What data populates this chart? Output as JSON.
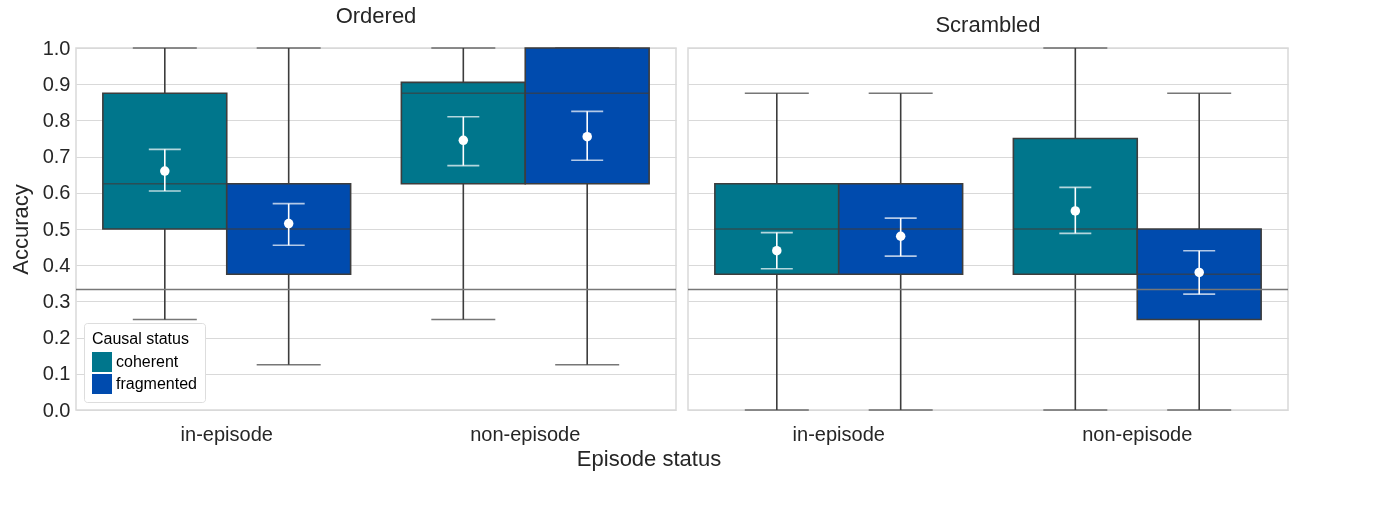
{
  "chart_data": [
    {
      "type": "box",
      "title": "Ordered",
      "xlabel": "Episode status",
      "ylabel": "Accuracy",
      "legend_title": "Causal status",
      "legend": "bottom left",
      "grid": "y",
      "categories": [
        "in-episode",
        "non-episode"
      ],
      "ylim": [
        0,
        1
      ],
      "yticks": [
        {
          "value": 0,
          "label": "0.0"
        },
        0.1,
        0.2,
        0.3,
        0.4,
        0.5,
        0.6,
        0.7,
        0.8,
        0.9,
        {
          "value": 1,
          "label": "1.0"
        }
      ],
      "ref_lines": [
        {
          "axis": "y",
          "value": 0.333,
          "color": "#777777"
        }
      ],
      "series": [
        {
          "name": "coherent",
          "color": "#00768c",
          "boxes": [
            {
              "low": 0.25,
              "q1": 0.5,
              "median": 0.625,
              "q3": 0.875,
              "high": 1
            },
            {
              "low": 0.25,
              "q1": 0.625,
              "median": 0.875,
              "q3": 0.905,
              "high": 1
            }
          ]
        },
        {
          "name": "fragmented",
          "color": "#004bae",
          "boxes": [
            {
              "low": 0.125,
              "q1": 0.375,
              "median": 0.5,
              "q3": 0.625,
              "high": 1
            },
            {
              "low": 0.125,
              "q1": 0.625,
              "median": 0.875,
              "q3": 1,
              "high": 1
            }
          ]
        },
        {
          "type": "scatter",
          "color": "#ffffff",
          "x": [
            "in-episode",
            "non-episode"
          ],
          "values": [
            0.66,
            0.745
          ],
          "errors": [
            [
              0.605,
              0.72
            ],
            [
              0.675,
              0.81
            ]
          ]
        },
        {
          "type": "scatter",
          "color": "#ffffff",
          "x": [
            "in-episode",
            "non-episode"
          ],
          "values": [
            0.515,
            0.755
          ],
          "errors": [
            [
              0.455,
              0.57
            ],
            [
              0.69,
              0.825
            ]
          ]
        }
      ]
    },
    {
      "type": "box",
      "title": "Scrambled",
      "grid": "y",
      "tick_labels": "x",
      "categories": [
        "in-episode",
        "non-episode"
      ],
      "ylim": [
        0,
        1
      ],
      "yticks": [
        0,
        0.1,
        0.2,
        0.3,
        0.4,
        0.5,
        0.6,
        0.7,
        0.8,
        0.9,
        1
      ],
      "ref_lines": [
        {
          "axis": "y",
          "value": 0.333,
          "color": "#777777"
        }
      ],
      "series": [
        {
          "color": "#00768c",
          "boxes": [
            {
              "low": 0,
              "q1": 0.375,
              "median": 0.5,
              "q3": 0.625,
              "high": 0.875
            },
            {
              "low": 0,
              "q1": 0.375,
              "median": 0.5,
              "q3": 0.75,
              "high": 1
            }
          ]
        },
        {
          "color": "#004bae",
          "boxes": [
            {
              "low": 0,
              "q1": 0.375,
              "median": 0.5,
              "q3": 0.625,
              "high": 0.875
            },
            {
              "low": 0,
              "q1": 0.25,
              "median": 0.375,
              "q3": 0.5,
              "high": 0.875
            }
          ]
        },
        {
          "type": "scatter",
          "color": "#ffffff",
          "x": [
            "in-episode",
            "non-episode"
          ],
          "values": [
            0.44,
            0.55
          ],
          "errors": [
            [
              0.39,
              0.49
            ],
            [
              0.488,
              0.615
            ]
          ]
        },
        {
          "type": "scatter",
          "color": "#ffffff",
          "x": [
            "in-episode",
            "non-episode"
          ],
          "values": [
            0.48,
            0.38
          ],
          "errors": [
            [
              0.425,
              0.53
            ],
            [
              0.32,
              0.44
            ]
          ]
        }
      ]
    }
  ]
}
